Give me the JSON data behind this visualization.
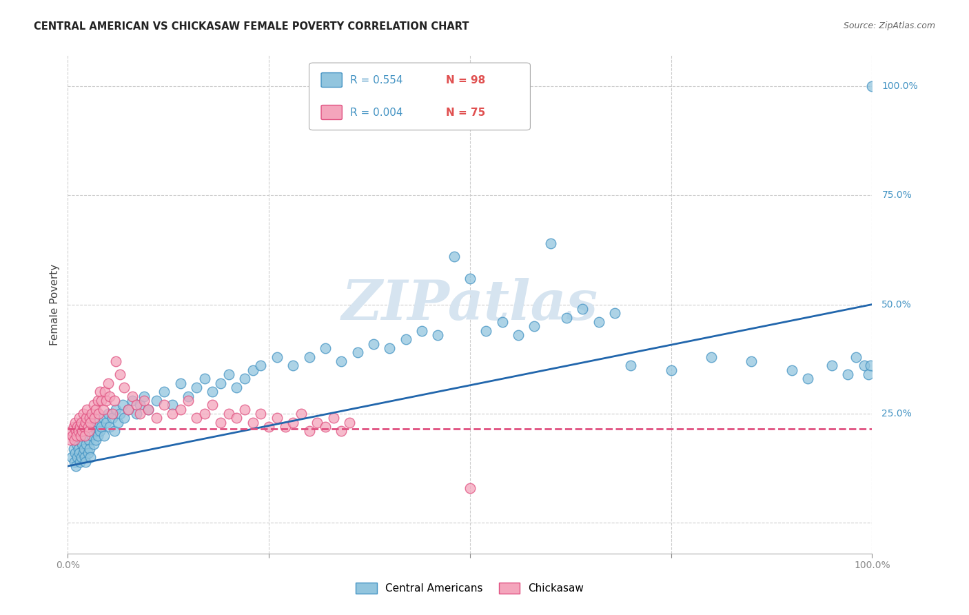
{
  "title": "CENTRAL AMERICAN VS CHICKASAW FEMALE POVERTY CORRELATION CHART",
  "source": "Source: ZipAtlas.com",
  "ylabel": "Female Poverty",
  "color_blue": "#92c5de",
  "color_blue_edge": "#4393c3",
  "color_pink": "#f4a5bc",
  "color_pink_edge": "#e05080",
  "color_blue_line": "#2166ac",
  "color_pink_line": "#e05080",
  "watermark_color": "#d6e4f0",
  "grid_color": "#cccccc",
  "background_color": "#ffffff",
  "legend_r1": "R = 0.554",
  "legend_n1": "N = 98",
  "legend_r2": "R = 0.004",
  "legend_n2": "N = 75",
  "ytick_labels_right": [
    "100.0%",
    "75.0%",
    "50.0%",
    "25.0%"
  ],
  "yticks_right": [
    1.0,
    0.75,
    0.5,
    0.25
  ],
  "blue_x": [
    0.005,
    0.007,
    0.008,
    0.009,
    0.01,
    0.011,
    0.012,
    0.013,
    0.014,
    0.015,
    0.016,
    0.017,
    0.018,
    0.019,
    0.02,
    0.021,
    0.022,
    0.023,
    0.025,
    0.026,
    0.027,
    0.028,
    0.03,
    0.032,
    0.033,
    0.035,
    0.036,
    0.037,
    0.038,
    0.04,
    0.042,
    0.044,
    0.045,
    0.048,
    0.05,
    0.052,
    0.055,
    0.058,
    0.06,
    0.062,
    0.065,
    0.068,
    0.07,
    0.075,
    0.08,
    0.085,
    0.09,
    0.095,
    0.1,
    0.11,
    0.12,
    0.13,
    0.14,
    0.15,
    0.16,
    0.17,
    0.18,
    0.19,
    0.2,
    0.21,
    0.22,
    0.23,
    0.24,
    0.26,
    0.28,
    0.3,
    0.32,
    0.34,
    0.36,
    0.38,
    0.4,
    0.42,
    0.44,
    0.46,
    0.48,
    0.5,
    0.52,
    0.54,
    0.56,
    0.58,
    0.6,
    0.62,
    0.64,
    0.66,
    0.68,
    0.7,
    0.75,
    0.8,
    0.85,
    0.9,
    0.92,
    0.95,
    0.97,
    0.98,
    0.99,
    0.995,
    0.998,
    1.0
  ],
  "blue_y": [
    0.15,
    0.17,
    0.14,
    0.16,
    0.13,
    0.18,
    0.15,
    0.17,
    0.16,
    0.14,
    0.19,
    0.15,
    0.18,
    0.16,
    0.17,
    0.15,
    0.14,
    0.18,
    0.16,
    0.19,
    0.17,
    0.15,
    0.2,
    0.18,
    0.22,
    0.19,
    0.21,
    0.2,
    0.23,
    0.21,
    0.22,
    0.24,
    0.2,
    0.23,
    0.25,
    0.22,
    0.24,
    0.21,
    0.26,
    0.23,
    0.25,
    0.27,
    0.24,
    0.26,
    0.28,
    0.25,
    0.27,
    0.29,
    0.26,
    0.28,
    0.3,
    0.27,
    0.32,
    0.29,
    0.31,
    0.33,
    0.3,
    0.32,
    0.34,
    0.31,
    0.33,
    0.35,
    0.36,
    0.38,
    0.36,
    0.38,
    0.4,
    0.37,
    0.39,
    0.41,
    0.4,
    0.42,
    0.44,
    0.43,
    0.61,
    0.56,
    0.44,
    0.46,
    0.43,
    0.45,
    0.64,
    0.47,
    0.49,
    0.46,
    0.48,
    0.36,
    0.35,
    0.38,
    0.37,
    0.35,
    0.33,
    0.36,
    0.34,
    0.38,
    0.36,
    0.34,
    0.36,
    1.0
  ],
  "pink_x": [
    0.003,
    0.005,
    0.006,
    0.007,
    0.008,
    0.009,
    0.01,
    0.011,
    0.012,
    0.013,
    0.014,
    0.015,
    0.016,
    0.017,
    0.018,
    0.019,
    0.02,
    0.021,
    0.022,
    0.023,
    0.024,
    0.025,
    0.026,
    0.027,
    0.028,
    0.03,
    0.032,
    0.033,
    0.035,
    0.037,
    0.038,
    0.04,
    0.042,
    0.044,
    0.046,
    0.048,
    0.05,
    0.052,
    0.055,
    0.058,
    0.06,
    0.065,
    0.07,
    0.075,
    0.08,
    0.085,
    0.09,
    0.095,
    0.1,
    0.11,
    0.12,
    0.13,
    0.14,
    0.15,
    0.16,
    0.17,
    0.18,
    0.19,
    0.2,
    0.21,
    0.22,
    0.23,
    0.24,
    0.25,
    0.26,
    0.27,
    0.28,
    0.29,
    0.3,
    0.31,
    0.32,
    0.33,
    0.34,
    0.35,
    0.5
  ],
  "pink_y": [
    0.19,
    0.21,
    0.2,
    0.22,
    0.19,
    0.23,
    0.21,
    0.2,
    0.22,
    0.21,
    0.24,
    0.22,
    0.2,
    0.23,
    0.21,
    0.25,
    0.22,
    0.2,
    0.23,
    0.24,
    0.26,
    0.22,
    0.21,
    0.24,
    0.23,
    0.25,
    0.27,
    0.24,
    0.26,
    0.28,
    0.25,
    0.3,
    0.28,
    0.26,
    0.3,
    0.28,
    0.32,
    0.29,
    0.25,
    0.28,
    0.37,
    0.34,
    0.31,
    0.26,
    0.29,
    0.27,
    0.25,
    0.28,
    0.26,
    0.24,
    0.27,
    0.25,
    0.26,
    0.28,
    0.24,
    0.25,
    0.27,
    0.23,
    0.25,
    0.24,
    0.26,
    0.23,
    0.25,
    0.22,
    0.24,
    0.22,
    0.23,
    0.25,
    0.21,
    0.23,
    0.22,
    0.24,
    0.21,
    0.23,
    0.08
  ]
}
